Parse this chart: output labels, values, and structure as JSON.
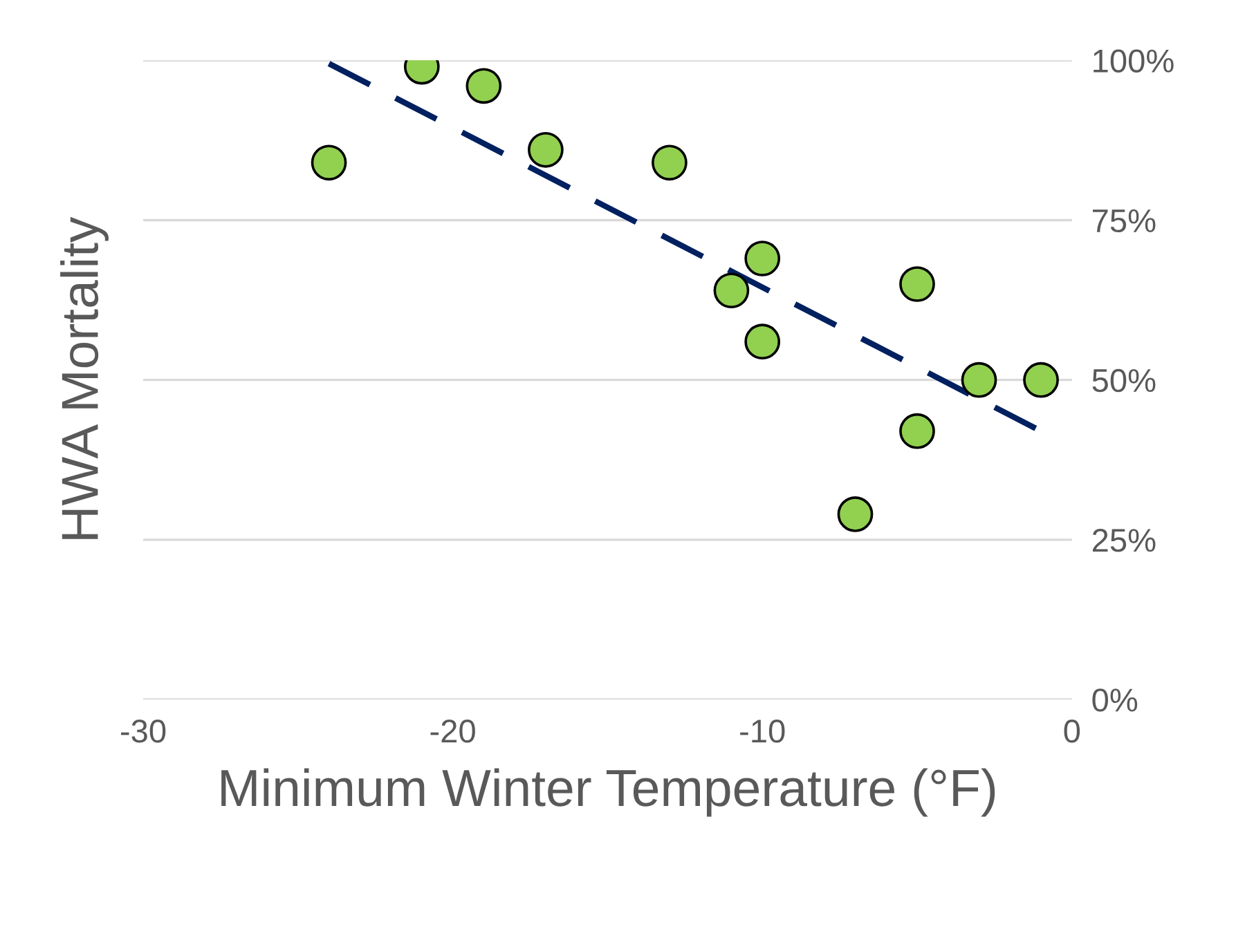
{
  "chart_data": {
    "type": "scatter",
    "xlabel": "Minimum Winter Temperature (°F)",
    "ylabel": "HWA Mortality",
    "xlim": [
      -30,
      0
    ],
    "xticks": [
      -30,
      -20,
      -10,
      0
    ],
    "ylim": [
      0,
      100
    ],
    "yticks": [
      {
        "value": 0,
        "label": "0%"
      },
      {
        "value": 25,
        "label": "25%"
      },
      {
        "value": 50,
        "label": "50%"
      },
      {
        "value": 75,
        "label": "75%"
      },
      {
        "value": 100,
        "label": "100%"
      }
    ],
    "grid": "y",
    "legend": false,
    "marker": "circle",
    "series": [
      {
        "color": "#92d050",
        "x": [
          -24,
          -21,
          -19,
          -17,
          -13,
          -11,
          -10,
          -10,
          -7,
          -5,
          -5,
          -3,
          -1
        ],
        "values": [
          84,
          99,
          96,
          86,
          84,
          64,
          69,
          56,
          29,
          65,
          42,
          50,
          50
        ]
      },
      {
        "type": "line",
        "color": "#002060",
        "line_style": "dashed",
        "marker": "none",
        "x": [
          -24,
          -1
        ],
        "values": [
          99.5,
          42
        ]
      }
    ]
  }
}
